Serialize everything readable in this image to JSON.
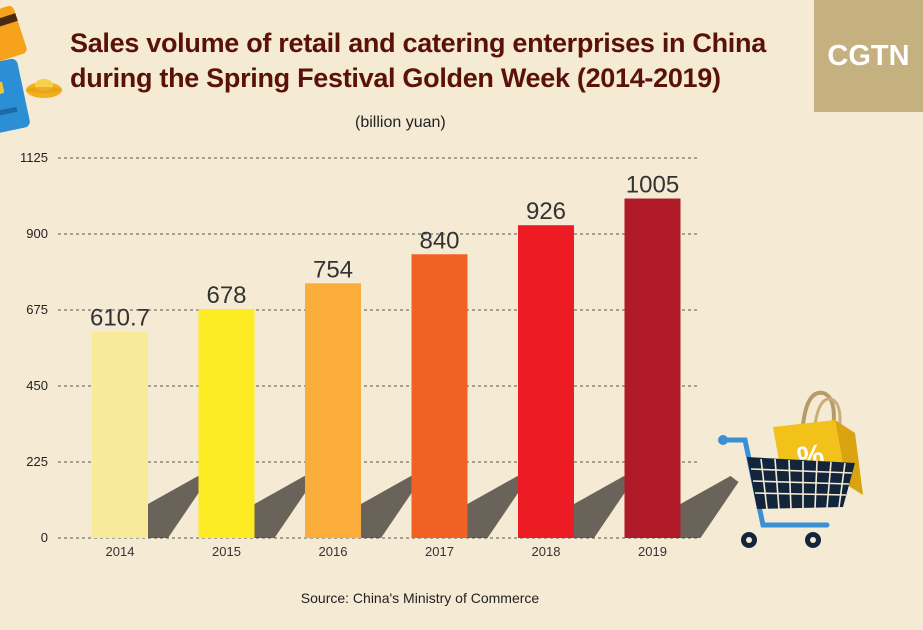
{
  "header": {
    "title_line1": "Sales volume of retail and catering enterprises in China",
    "title_line2": "during the Spring Festival Golden Week (2014-2019)",
    "unit": "(billion yuan)",
    "logo": "CGTN"
  },
  "footer": {
    "source": "Source: China's Ministry of Commerce"
  },
  "icons": [
    "credit-card-icon",
    "gold-ingot-icon",
    "shopping-cart-icon",
    "shopping-bag-icon",
    "percent-icon"
  ],
  "colors": {
    "background": "#f5ead4",
    "title": "#5a1208",
    "logo_bg": "#c5b07f",
    "bars": [
      "#f7eb9a",
      "#fdeb24",
      "#fbad3c",
      "#f26124",
      "#ed1c24",
      "#b01a28"
    ]
  },
  "chart_data": {
    "type": "bar",
    "categories": [
      "2014",
      "2015",
      "2016",
      "2017",
      "2018",
      "2019"
    ],
    "values": [
      610.7,
      678,
      754,
      840,
      926,
      1005
    ],
    "value_labels": [
      "610.7",
      "678",
      "754",
      "840",
      "926",
      "1005"
    ],
    "ylim": [
      0,
      1125
    ],
    "yticks": [
      0,
      225,
      450,
      675,
      900,
      1125
    ],
    "ytick_labels": [
      "0",
      "225",
      "450",
      "675",
      "900",
      "1125"
    ],
    "grid": true,
    "legend": "none"
  }
}
